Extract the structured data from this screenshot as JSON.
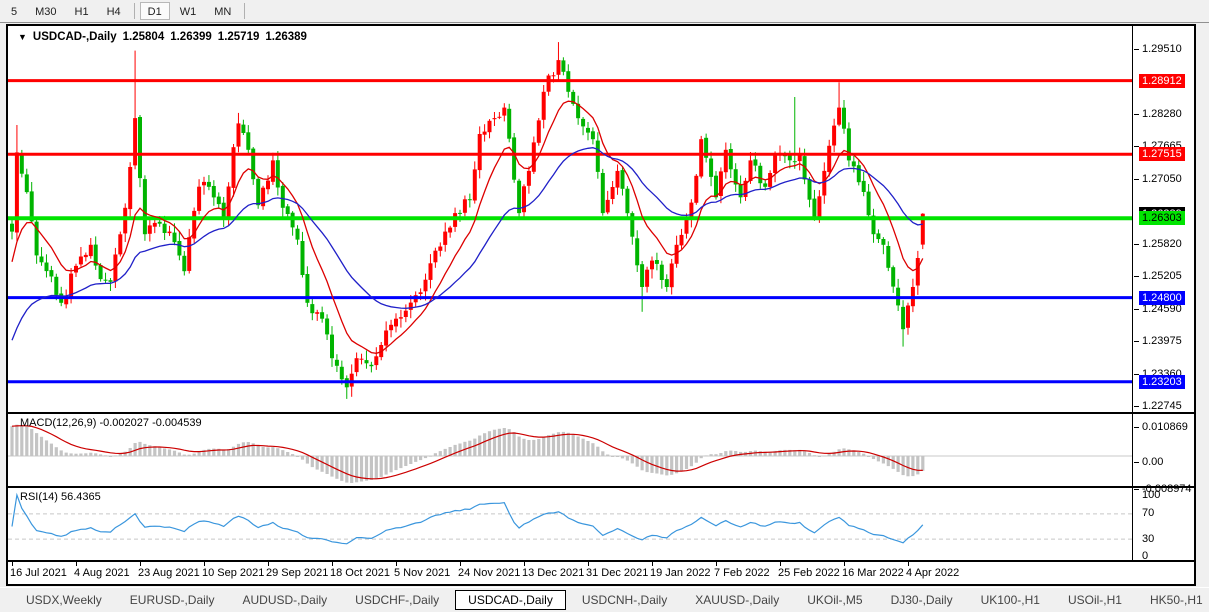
{
  "toolbar": {
    "timeframes": [
      "5",
      "M30",
      "H1",
      "H4",
      "D1",
      "W1",
      "MN"
    ],
    "active_timeframe": "D1",
    "separators_after": [
      "H4",
      "MN"
    ]
  },
  "chart": {
    "dropdown_icon": "▼",
    "symbol_label": "USDCAD-,Daily",
    "open": "1.25804",
    "high": "1.26399",
    "low": "1.25719",
    "close": "1.26389"
  },
  "price_axis": {
    "ticks": [
      "1.29510",
      "1.28280",
      "1.27665",
      "1.27050",
      "1.25820",
      "1.25205",
      "1.24590",
      "1.23975",
      "1.23360",
      "1.22745"
    ],
    "level_labels": [
      {
        "text": "1.28912",
        "bg": "#ff0000",
        "fg": "#ffffff"
      },
      {
        "text": "1.27515",
        "bg": "#ff0000",
        "fg": "#ffffff"
      },
      {
        "text": "1.26303",
        "bg": "#00e400",
        "fg": "#000000"
      },
      {
        "text": "1.24800",
        "bg": "#0000ff",
        "fg": "#ffffff"
      },
      {
        "text": "1.23203",
        "bg": "#0000ff",
        "fg": "#ffffff"
      }
    ],
    "current_price_label": {
      "text": "1.26389",
      "bg": "#000000",
      "fg": "#ffffff"
    }
  },
  "macd_panel": {
    "label": "MACD(12,26,9) -0.002027 -0.004539",
    "name": "MACD",
    "params": "12,26,9",
    "macd_value": -0.002027,
    "signal_value": -0.004539,
    "axis_labels": [
      "0.010869",
      "0.00",
      "-0.008974"
    ]
  },
  "rsi_panel": {
    "label": "RSI(14) 56.4365",
    "name": "RSI",
    "period": 14,
    "value": 56.4365,
    "axis_labels": [
      "100",
      "70",
      "30",
      "0"
    ]
  },
  "date_axis": {
    "labels": [
      "16 Jul 2021",
      "4 Aug 2021",
      "23 Aug 2021",
      "10 Sep 2021",
      "29 Sep 2021",
      "18 Oct 2021",
      "5 Nov 2021",
      "24 Nov 2021",
      "13 Dec 2021",
      "31 Dec 2021",
      "19 Jan 2022",
      "7 Feb 2022",
      "25 Feb 2022",
      "16 Mar 2022",
      "4 Apr 2022"
    ]
  },
  "tabbar": {
    "tabs": [
      "USDX,Weekly",
      "EURUSD-,Daily",
      "AUDUSD-,Daily",
      "USDCHF-,Daily",
      "USDCAD-,Daily",
      "USDCNH-,Daily",
      "XAUUSD-,Daily",
      "UKOil-,M5",
      "DJ30-,Daily",
      "UK100-,H1",
      "USOil-,H1",
      "HK50-,H1"
    ],
    "active_tab": "USDCAD-,Daily",
    "scroll_left_icon": "◂",
    "scroll_right_icon": "▸"
  },
  "chart_data": {
    "type": "candlestick",
    "symbol": "USDCAD",
    "timeframe": "Daily",
    "bar_count": 186,
    "visible_price_range": [
      1.2263,
      1.29946
    ],
    "horizontal_levels": [
      {
        "price": 1.28912,
        "color": "#ff0000",
        "width": 3
      },
      {
        "price": 1.27515,
        "color": "#ff0000",
        "width": 3
      },
      {
        "price": 1.26303,
        "color": "#00e400",
        "width": 4
      },
      {
        "price": 1.248,
        "color": "#0000ff",
        "width": 3
      },
      {
        "price": 1.23203,
        "color": "#0000ff",
        "width": 3
      }
    ],
    "current_price": 1.26389,
    "last_candle": {
      "open": 1.25804,
      "high": 1.26399,
      "low": 1.25719,
      "close": 1.26389
    },
    "close_anchors": [
      [
        0,
        1.2605
      ],
      [
        1,
        1.2755
      ],
      [
        3,
        1.268
      ],
      [
        5,
        1.256
      ],
      [
        8,
        1.252
      ],
      [
        10,
        1.247
      ],
      [
        13,
        1.254
      ],
      [
        16,
        1.258
      ],
      [
        18,
        1.2515
      ],
      [
        20,
        1.251
      ],
      [
        23,
        1.265
      ],
      [
        25,
        1.282
      ],
      [
        27,
        1.26
      ],
      [
        30,
        1.262
      ],
      [
        32,
        1.2605
      ],
      [
        35,
        1.253
      ],
      [
        38,
        1.269
      ],
      [
        40,
        1.269
      ],
      [
        43,
        1.263
      ],
      [
        45,
        1.2765
      ],
      [
        46,
        1.281
      ],
      [
        48,
        1.276
      ],
      [
        50,
        1.2655
      ],
      [
        53,
        1.274
      ],
      [
        55,
        1.265
      ],
      [
        58,
        1.259
      ],
      [
        60,
        1.247
      ],
      [
        63,
        1.244
      ],
      [
        65,
        1.2365
      ],
      [
        68,
        1.231
      ],
      [
        70,
        1.2365
      ],
      [
        73,
        1.235
      ],
      [
        75,
        1.239
      ],
      [
        78,
        1.244
      ],
      [
        80,
        1.2455
      ],
      [
        83,
        1.249
      ],
      [
        85,
        1.2545
      ],
      [
        88,
        1.2605
      ],
      [
        90,
        1.264
      ],
      [
        93,
        1.2665
      ],
      [
        95,
        1.279
      ],
      [
        98,
        1.282
      ],
      [
        100,
        1.284
      ],
      [
        103,
        1.264
      ],
      [
        105,
        1.272
      ],
      [
        108,
        1.287
      ],
      [
        111,
        1.293
      ],
      [
        113,
        1.287
      ],
      [
        115,
        1.282
      ],
      [
        118,
        1.278
      ],
      [
        120,
        1.264
      ],
      [
        123,
        1.272
      ],
      [
        125,
        1.264
      ],
      [
        128,
        1.25
      ],
      [
        130,
        1.255
      ],
      [
        133,
        1.25
      ],
      [
        135,
        1.258
      ],
      [
        138,
        1.266
      ],
      [
        140,
        1.278
      ],
      [
        143,
        1.267
      ],
      [
        145,
        1.276
      ],
      [
        148,
        1.267
      ],
      [
        150,
        1.274
      ],
      [
        153,
        1.269
      ],
      [
        155,
        1.275
      ],
      [
        158,
        1.274
      ],
      [
        160,
        1.275
      ],
      [
        163,
        1.263
      ],
      [
        165,
        1.272
      ],
      [
        168,
        1.284
      ],
      [
        170,
        1.274
      ],
      [
        173,
        1.268
      ],
      [
        175,
        1.26
      ],
      [
        177,
        1.258
      ],
      [
        180,
        1.2465
      ],
      [
        181,
        1.242
      ],
      [
        182,
        1.2465
      ],
      [
        183,
        1.25
      ],
      [
        184,
        1.2555
      ],
      [
        185,
        1.26389
      ]
    ],
    "wick_spikes": [
      {
        "i": 1,
        "high": 1.2807
      },
      {
        "i": 25,
        "high": 1.2948
      },
      {
        "i": 46,
        "high": 1.283
      },
      {
        "i": 68,
        "low": 1.2288
      },
      {
        "i": 69,
        "low": 1.2292
      },
      {
        "i": 111,
        "high": 1.2964
      },
      {
        "i": 128,
        "low": 1.2453
      },
      {
        "i": 159,
        "high": 1.286
      },
      {
        "i": 168,
        "high": 1.2888
      },
      {
        "i": 181,
        "low": 1.2387
      }
    ],
    "indicators": [
      {
        "name": "MA fast",
        "color": "#dd0000"
      },
      {
        "name": "MA slow",
        "color": "#2020c8"
      },
      {
        "name": "MACD histogram",
        "color": "#c4c4c4"
      },
      {
        "name": "MACD signal",
        "color": "#cc0000"
      },
      {
        "name": "RSI line",
        "color": "#3a96dd"
      }
    ],
    "colors": {
      "bull_candle": "#ff0000",
      "bear_candle": "#00b400",
      "background": "#ffffff",
      "panel_chrome": "#f0f0f0",
      "rsi_levels_dash": "#c8c8c8"
    },
    "rsi_levels": [
      70,
      30
    ]
  }
}
